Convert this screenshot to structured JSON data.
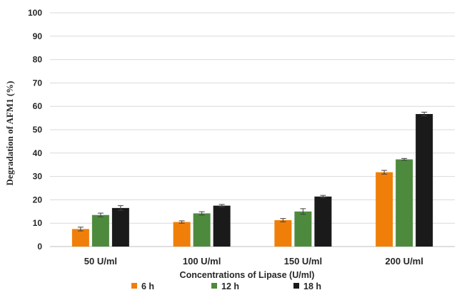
{
  "chart_data": {
    "type": "bar",
    "title": "",
    "xlabel": "Concentrations of Lipase (U/ml)",
    "ylabel": "Degradation of AFM1 (%)",
    "ylim": [
      0,
      100
    ],
    "yticks": [
      0,
      10,
      20,
      30,
      40,
      50,
      60,
      70,
      80,
      90,
      100
    ],
    "grid": true,
    "legend_position": "bottom",
    "categories": [
      "50 U/ml",
      "100 U/ml",
      "150 U/ml",
      "200 U/ml"
    ],
    "series": [
      {
        "name": "6 h",
        "color": "#f07f09",
        "values": [
          7.5,
          10.5,
          11.3,
          31.8
        ],
        "errors": [
          0.8,
          0.5,
          0.7,
          0.8
        ]
      },
      {
        "name": "12 h",
        "color": "#4e8a3e",
        "values": [
          13.5,
          14.2,
          15.0,
          37.3
        ],
        "errors": [
          0.8,
          0.7,
          1.2,
          0.4
        ]
      },
      {
        "name": "18 h",
        "color": "#1a1a1a",
        "values": [
          16.5,
          17.5,
          21.4,
          56.7
        ],
        "errors": [
          1.0,
          0.5,
          0.5,
          0.8
        ]
      }
    ]
  }
}
